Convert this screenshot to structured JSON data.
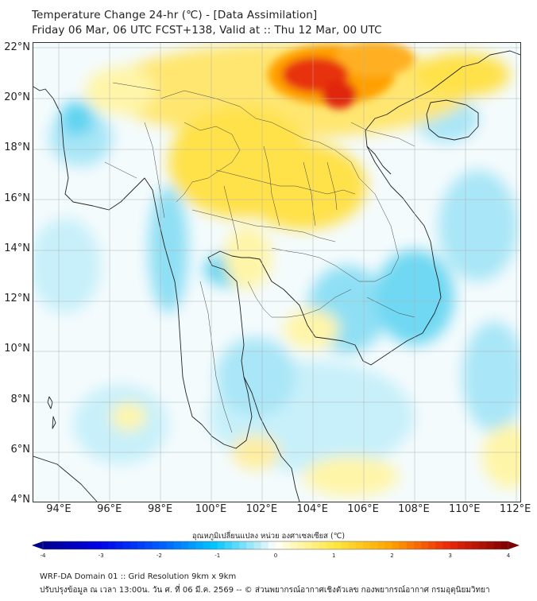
{
  "title": {
    "line1": "Temperature Change 24-hr (℃) - [Data Assimilation]",
    "line2": "Friday 06 Mar, 06 UTC FCST+138, Valid at :: Thu 12 Mar, 00 UTC"
  },
  "map": {
    "lat_labels": [
      "22°N",
      "20°N",
      "18°N",
      "16°N",
      "14°N",
      "12°N",
      "10°N",
      "8°N",
      "6°N",
      "4°N"
    ],
    "lon_labels": [
      "94°E",
      "96°E",
      "98°E",
      "100°E",
      "102°E",
      "104°E",
      "106°E",
      "108°E",
      "110°E",
      "112°E"
    ],
    "lat_range": [
      4,
      22
    ],
    "lon_range": [
      93,
      112.2
    ],
    "colors": {
      "near_zero": "#f4fbfd",
      "light_cool": "#c8f0fa",
      "cool": "#5fd3f0",
      "mild_warm": "#fff5a8",
      "warm": "#ffe14a",
      "hot": "#ffa000",
      "very_hot": "#e8310e"
    }
  },
  "colorbar": {
    "title": "อุณหภูมิเปลี่ยนแปลง หน่วย องศาเซลเซียส (℃)",
    "tick_labels": [
      "-4",
      "-3",
      "-2",
      "-1",
      "0",
      "1",
      "2",
      "3",
      "4"
    ],
    "range": [
      -4,
      4
    ],
    "low_color": "#00008f",
    "high_color": "#7f0000"
  },
  "footer": {
    "line1": "WRF-DA Domain 01 :: Grid Resolution 9km x 9km",
    "line2": "ปรับปรุงข้อมูล ณ เวลา 13:00น. วัน ศ. ที่ 06 มี.ค. 2569 -- © ส่วนพยากรณ์อากาศเชิงตัวเลข กองพยากรณ์อากาศ กรมอุตุนิยมวิทยา"
  }
}
